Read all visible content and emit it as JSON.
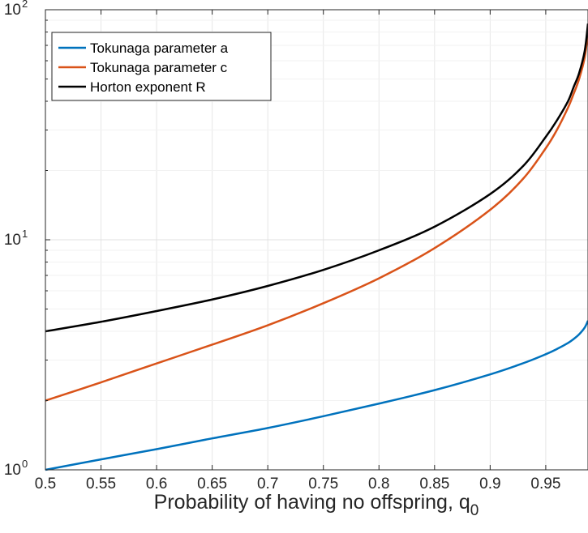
{
  "chart_data": {
    "type": "line",
    "title": "",
    "xlabel": "Probability of having no offspring, q",
    "xlabel_subscript": "0",
    "ylabel": "",
    "xlim": [
      0.5,
      0.988
    ],
    "ylim": [
      1,
      100
    ],
    "yscale": "log",
    "grid": true,
    "legend_position": "top-left",
    "x_ticks": [
      0.5,
      0.55,
      0.6,
      0.65,
      0.7,
      0.75,
      0.8,
      0.85,
      0.9,
      0.95
    ],
    "x_tick_labels": [
      "0.5",
      "0.55",
      "0.6",
      "0.65",
      "0.7",
      "0.75",
      "0.8",
      "0.85",
      "0.9",
      "0.95"
    ],
    "y_ticks": [
      1,
      10,
      100
    ],
    "y_tick_labels": [
      {
        "base": "10",
        "exp": "0"
      },
      {
        "base": "10",
        "exp": "1"
      },
      {
        "base": "10",
        "exp": "2"
      }
    ],
    "x": [
      0.5,
      0.55,
      0.6,
      0.65,
      0.7,
      0.75,
      0.8,
      0.85,
      0.9,
      0.93,
      0.95,
      0.96,
      0.97,
      0.975,
      0.98,
      0.985,
      0.988
    ],
    "series": [
      {
        "name": "Tokunaga parameter a",
        "color": "#0072BD",
        "values": [
          1.0,
          1.11,
          1.23,
          1.37,
          1.52,
          1.71,
          1.94,
          2.22,
          2.6,
          2.91,
          3.18,
          3.35,
          3.56,
          3.7,
          3.88,
          4.15,
          4.45
        ]
      },
      {
        "name": "Tokunaga parameter c",
        "color": "#D95319",
        "values": [
          2.0,
          2.4,
          2.9,
          3.5,
          4.25,
          5.3,
          6.8,
          9.2,
          13.5,
          18.5,
          25,
          30,
          37.5,
          43,
          50,
          62,
          80
        ]
      },
      {
        "name": "Horton exponent R",
        "color": "#000000",
        "values": [
          4.0,
          4.4,
          4.9,
          5.5,
          6.3,
          7.4,
          9.0,
          11.4,
          15.8,
          21,
          28,
          33,
          40,
          46,
          53,
          66,
          87
        ]
      }
    ]
  }
}
